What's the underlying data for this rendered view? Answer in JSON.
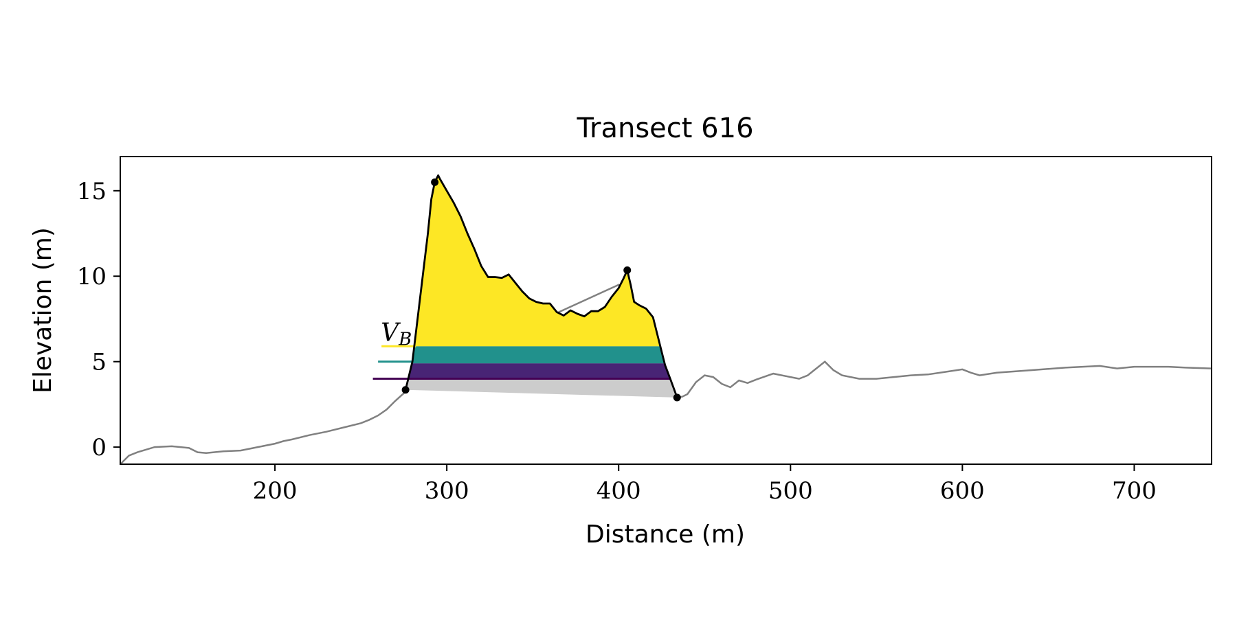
{
  "chart_data": {
    "type": "line",
    "title": "Transect 616",
    "xlabel": "Distance (m)",
    "ylabel": "Elevation (m)",
    "xlim": [
      110,
      745
    ],
    "ylim": [
      -1.0,
      17.0
    ],
    "x_ticks": [
      200,
      300,
      400,
      500,
      600,
      700
    ],
    "x_tick_labels": [
      "200",
      "300",
      "400",
      "500",
      "600",
      "700"
    ],
    "y_ticks": [
      0,
      5,
      10,
      15
    ],
    "y_tick_labels": [
      "0",
      "5",
      "10",
      "15"
    ],
    "grid": false,
    "legend": "none",
    "annotation_label": "V_B",
    "colors": {
      "profile": "#808080",
      "dune_outline": "#000000",
      "base_fill": "#cccccc",
      "band_low": "#482475",
      "band_mid": "#21918c",
      "band_high": "#fde725",
      "level_line_low": "#440154",
      "level_line_mid": "#21918c",
      "level_line_high": "#fde725"
    },
    "profile": {
      "x": [
        110,
        115,
        120,
        130,
        140,
        150,
        155,
        160,
        170,
        180,
        190,
        200,
        205,
        210,
        220,
        230,
        240,
        250,
        255,
        260,
        265,
        270,
        275,
        276,
        300,
        350,
        400,
        434,
        437,
        440,
        445,
        450,
        455,
        460,
        465,
        470,
        475,
        480,
        490,
        500,
        505,
        510,
        515,
        520,
        525,
        530,
        540,
        550,
        560,
        570,
        580,
        590,
        600,
        605,
        610,
        620,
        640,
        660,
        680,
        690,
        700,
        720,
        730,
        745
      ],
      "y": [
        -1.0,
        -0.5,
        -0.3,
        0.0,
        0.05,
        -0.05,
        -0.3,
        -0.35,
        -0.25,
        -0.2,
        0.0,
        0.2,
        0.35,
        0.45,
        0.7,
        0.9,
        1.15,
        1.4,
        1.6,
        1.85,
        2.2,
        2.7,
        3.15,
        3.35,
        4.6,
        7.2,
        9.5,
        2.9,
        2.95,
        3.1,
        3.8,
        4.2,
        4.1,
        3.7,
        3.5,
        3.9,
        3.75,
        3.95,
        4.3,
        4.1,
        4.0,
        4.2,
        4.6,
        5.0,
        4.5,
        4.2,
        4.0,
        4.0,
        4.1,
        4.2,
        4.25,
        4.4,
        4.55,
        4.35,
        4.2,
        4.35,
        4.5,
        4.65,
        4.75,
        4.6,
        4.7,
        4.7,
        4.65,
        4.6
      ]
    },
    "dune": {
      "x": [
        276,
        280,
        283,
        286,
        289,
        291,
        293,
        295,
        296,
        300,
        304,
        308,
        312,
        316,
        320,
        324,
        328,
        332,
        336,
        340,
        344,
        348,
        352,
        356,
        360,
        364,
        368,
        372,
        376,
        380,
        384,
        388,
        392,
        396,
        400,
        403,
        405,
        407,
        409,
        412,
        416,
        420,
        424,
        427,
        430,
        434
      ],
      "y": [
        3.35,
        5.0,
        7.5,
        10.0,
        12.5,
        14.5,
        15.5,
        15.9,
        15.7,
        15.0,
        14.3,
        13.5,
        12.5,
        11.6,
        10.6,
        9.95,
        9.95,
        9.9,
        10.1,
        9.6,
        9.1,
        8.7,
        8.5,
        8.4,
        8.4,
        7.9,
        7.7,
        8.0,
        7.8,
        7.65,
        7.95,
        7.95,
        8.2,
        8.8,
        9.3,
        9.9,
        10.35,
        9.5,
        8.5,
        8.3,
        8.1,
        7.6,
        6.0,
        4.8,
        4.0,
        2.9
      ]
    },
    "markers": [
      {
        "x": 276,
        "y": 3.35
      },
      {
        "x": 293,
        "y": 15.5
      },
      {
        "x": 405,
        "y": 10.35
      },
      {
        "x": 434,
        "y": 2.9
      }
    ],
    "base_line": {
      "x": [
        276,
        434
      ],
      "y": [
        3.35,
        2.9
      ]
    },
    "bands": [
      {
        "name": "low",
        "y0": 4.0,
        "y1": 4.9
      },
      {
        "name": "mid",
        "y0": 4.9,
        "y1": 5.9
      },
      {
        "name": "high",
        "y0": 5.9,
        "y1": 20
      }
    ],
    "levels": [
      {
        "y": 4.0,
        "x_start": 257
      },
      {
        "y": 5.0,
        "x_start": 260
      },
      {
        "y": 5.9,
        "x_start": 262
      }
    ]
  }
}
